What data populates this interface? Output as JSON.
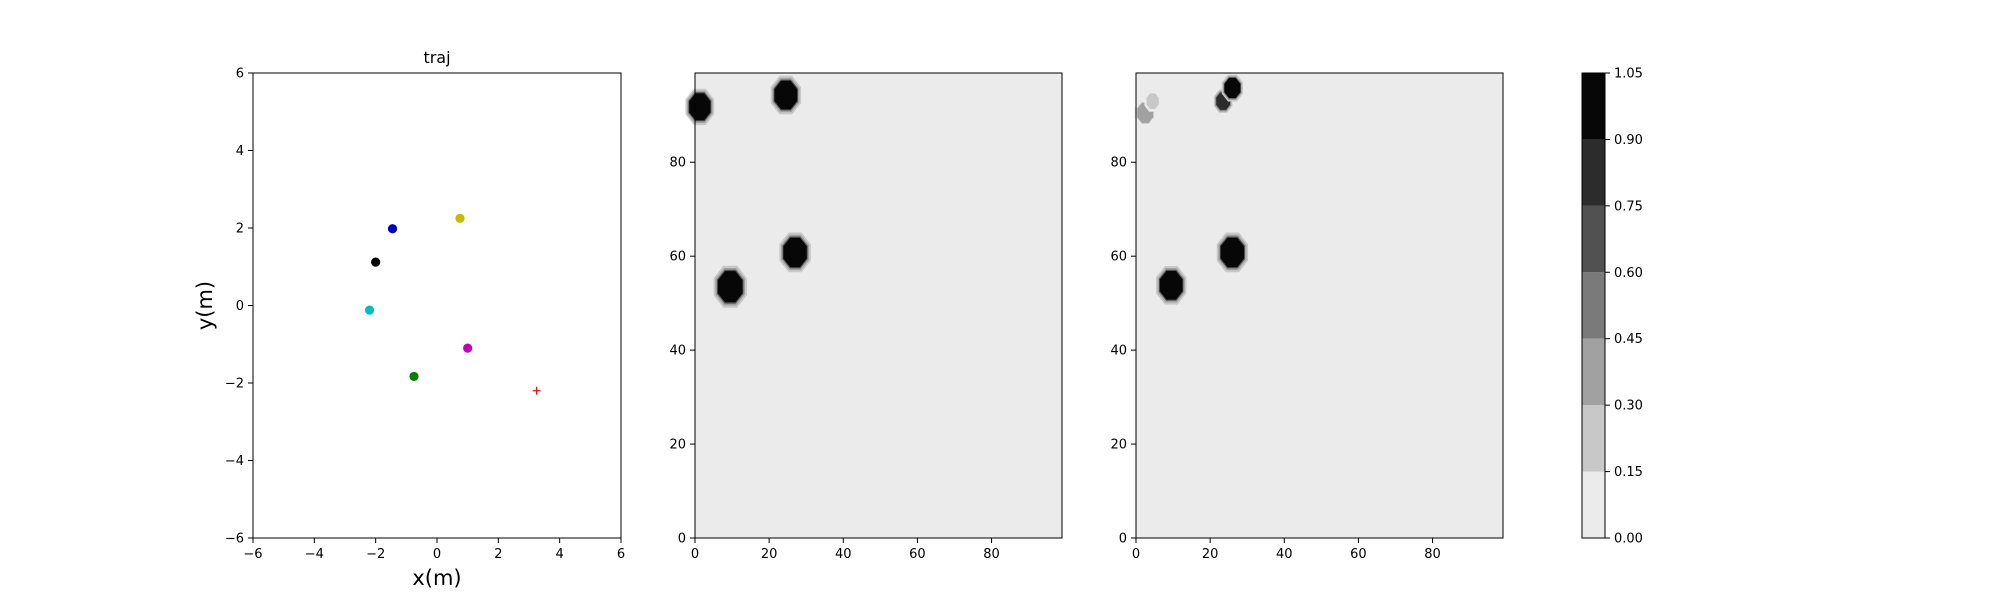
{
  "chart_data": [
    {
      "type": "scatter",
      "title": "traj",
      "xlabel": "x(m)",
      "ylabel": "y(m)",
      "xlim": [
        -6,
        6
      ],
      "ylim": [
        -6,
        6
      ],
      "xticks": [
        -6,
        -4,
        -2,
        0,
        2,
        4,
        6
      ],
      "yticks": [
        -6,
        -4,
        -2,
        0,
        2,
        4,
        6
      ],
      "grid": false,
      "points": [
        {
          "x": -1.45,
          "y": 1.98,
          "color": "#0000cc",
          "marker": "dot"
        },
        {
          "x": 0.75,
          "y": 2.25,
          "color": "#bfbf00",
          "marker": "dot"
        },
        {
          "x": -2.0,
          "y": 1.12,
          "color": "#000000",
          "marker": "dot"
        },
        {
          "x": -2.2,
          "y": -0.12,
          "color": "#00bfbf",
          "marker": "dot"
        },
        {
          "x": 1.0,
          "y": -1.1,
          "color": "#bf00bf",
          "marker": "dot"
        },
        {
          "x": -0.75,
          "y": -1.83,
          "color": "#007f00",
          "marker": "dot"
        },
        {
          "x": 3.25,
          "y": -2.2,
          "color": "#ff0000",
          "marker": "plus"
        }
      ]
    },
    {
      "type": "heatmap",
      "title": "",
      "xlim": [
        0,
        99
      ],
      "ylim": [
        0,
        99
      ],
      "xticks": [
        0,
        20,
        40,
        60,
        80
      ],
      "yticks": [
        0,
        20,
        40,
        60,
        80
      ],
      "background_value": 0.05,
      "blobs": [
        {
          "cx": 1.3,
          "cy": 91.8,
          "r": 3.1,
          "value": 1.0
        },
        {
          "cx": 24.5,
          "cy": 94.3,
          "r": 3.3,
          "value": 1.0
        },
        {
          "cx": 9.5,
          "cy": 53.5,
          "r": 3.6,
          "value": 1.0
        },
        {
          "cx": 27.0,
          "cy": 60.8,
          "r": 3.4,
          "value": 1.0
        }
      ]
    },
    {
      "type": "heatmap",
      "title": "",
      "xlim": [
        0,
        99
      ],
      "ylim": [
        0,
        99
      ],
      "xticks": [
        0,
        20,
        40,
        60,
        80
      ],
      "yticks": [
        0,
        20,
        40,
        60,
        80
      ],
      "background_value": 0.05,
      "blobs": [
        {
          "cx": 2.5,
          "cy": 90.5,
          "r": 2.3,
          "value": 0.3
        },
        {
          "cx": 4.5,
          "cy": 93.0,
          "r": 1.8,
          "value": 0.2
        },
        {
          "cx": 23.5,
          "cy": 93.0,
          "r": 2.0,
          "value": 0.85
        },
        {
          "cx": 26.0,
          "cy": 95.8,
          "r": 2.3,
          "value": 1.0
        },
        {
          "cx": 9.5,
          "cy": 53.8,
          "r": 3.3,
          "value": 1.0
        },
        {
          "cx": 26.0,
          "cy": 60.8,
          "r": 3.4,
          "value": 1.0
        }
      ]
    }
  ],
  "colorbar": {
    "levels": [
      0.0,
      0.15,
      0.3,
      0.45,
      0.6,
      0.75,
      0.9,
      1.05
    ],
    "tick_labels": [
      "0.00",
      "0.15",
      "0.30",
      "0.45",
      "0.60",
      "0.75",
      "0.90",
      "1.05"
    ],
    "colors": [
      "#ebebeb",
      "#c8c8c8",
      "#a1a1a1",
      "#7a7a7a",
      "#515151",
      "#2c2c2c",
      "#070707"
    ]
  }
}
